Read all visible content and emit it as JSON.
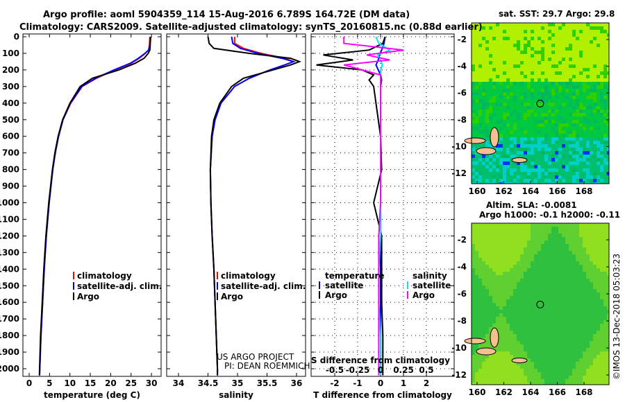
{
  "title_line1": "Argo profile: aoml 5904359_114 15-Aug-2016 6.789S 164.72E (DM data)",
  "title_line2": "Climatology: CARS2009. Satellite-adjusted climatology: synTS_20160815.nc (0.88d earlier)",
  "credit": [
    "US ARGO PROJECT",
    "PI: DEAN ROEMMICH"
  ],
  "timestamp": "©IMOS 13-Dec-2018 05:03:23",
  "colors": {
    "climatology": "#ff0000",
    "satellite": "#0000ff",
    "argo": "#000000",
    "sal_sat": "#00e5ee",
    "sal_argo": "#ff00ff"
  },
  "depth_ticks": [
    0,
    100,
    200,
    300,
    400,
    500,
    600,
    700,
    800,
    900,
    1000,
    1100,
    1200,
    1300,
    1400,
    1500,
    1600,
    1700,
    1800,
    1900,
    2000
  ],
  "chart_data": [
    {
      "type": "line",
      "name": "temperature",
      "xlabel": "temperature (deg C)",
      "xlim": [
        -1.5,
        32
      ],
      "ylim": [
        2045,
        0
      ],
      "xticks": [
        0,
        5,
        10,
        15,
        20,
        25,
        30
      ],
      "legend": [
        "climatology",
        "satellite-adj. clim.",
        "Argo"
      ],
      "depth": [
        0,
        50,
        80,
        100,
        130,
        160,
        200,
        250,
        300,
        400,
        500,
        600,
        700,
        800,
        1000,
        1200,
        1400,
        1600,
        1800,
        2000,
        2040
      ],
      "series": [
        {
          "name": "climatology",
          "key": "climatology",
          "values": [
            29.6,
            29.5,
            29.3,
            28.5,
            27,
            25,
            21,
            16.5,
            13,
            10.2,
            8.3,
            7.2,
            6.4,
            5.8,
            4.9,
            4.2,
            3.7,
            3.3,
            2.9,
            2.6,
            2.55
          ]
        },
        {
          "name": "satellite-adj. clim.",
          "key": "satellite",
          "values": [
            29.8,
            29.6,
            29.3,
            28.4,
            26.8,
            24.8,
            20.8,
            16.3,
            12.9,
            10.1,
            8.3,
            7.2,
            6.4,
            5.8,
            4.9,
            4.2,
            3.7,
            3.3,
            2.9,
            2.6,
            2.55
          ]
        },
        {
          "name": "Argo",
          "key": "argo",
          "values": [
            29.8,
            29.7,
            29.6,
            29.2,
            28.2,
            26,
            22,
            15.5,
            12.5,
            10,
            8.2,
            7.1,
            6.3,
            5.7,
            4.8,
            4.1,
            3.6,
            3.2,
            2.8,
            2.55,
            2.5
          ]
        }
      ]
    },
    {
      "type": "line",
      "name": "salinity",
      "xlabel": "salinity",
      "xlim": [
        33.8,
        36.2
      ],
      "ylim": [
        2045,
        0
      ],
      "xticks": [
        34,
        34.5,
        35,
        35.5,
        36
      ],
      "legend": [
        "climatology",
        "satellite-adj. clim.",
        "Argo"
      ],
      "depth": [
        0,
        40,
        70,
        100,
        130,
        150,
        170,
        200,
        250,
        300,
        400,
        500,
        600,
        800,
        1000,
        1200,
        1400,
        1600,
        1800,
        2000,
        2040
      ],
      "series": [
        {
          "name": "climatology",
          "key": "climatology",
          "values": [
            34.95,
            34.95,
            35.1,
            35.4,
            35.8,
            35.95,
            35.8,
            35.55,
            35.2,
            34.95,
            34.72,
            34.62,
            34.57,
            34.54,
            34.55,
            34.57,
            34.6,
            34.62,
            34.64,
            34.66,
            34.66
          ]
        },
        {
          "name": "satellite-adj. clim.",
          "key": "satellite",
          "values": [
            34.9,
            34.92,
            35.05,
            35.35,
            35.75,
            35.95,
            35.8,
            35.55,
            35.2,
            34.95,
            34.72,
            34.62,
            34.57,
            34.54,
            34.55,
            34.57,
            34.6,
            34.62,
            34.64,
            34.66,
            34.66
          ]
        },
        {
          "name": "Argo",
          "key": "argo",
          "values": [
            34.5,
            34.52,
            34.6,
            35.2,
            35.9,
            36.05,
            35.9,
            35.6,
            35.1,
            34.9,
            34.7,
            34.6,
            34.56,
            34.54,
            34.55,
            34.57,
            34.6,
            34.62,
            34.64,
            34.66,
            34.66
          ]
        }
      ]
    },
    {
      "type": "line",
      "name": "difference",
      "xlabel": "T difference from climatology",
      "s_label": "S difference from climatology",
      "xlim": [
        -3,
        3
      ],
      "xticks": [
        -2,
        -1,
        0,
        1,
        2
      ],
      "s_xticks": [
        -0.5,
        -0.25,
        0,
        0.25,
        0.5
      ],
      "ylim": [
        2045,
        0
      ],
      "legend_t": [
        "temperature",
        "satellite",
        "Argo"
      ],
      "legend_s": [
        "salinity",
        "satellite",
        "Argo"
      ],
      "depth": [
        0,
        40,
        80,
        110,
        140,
        170,
        200,
        230,
        260,
        300,
        400,
        500,
        600,
        800,
        1000,
        1200,
        1400,
        1600,
        1800,
        2000,
        2040
      ],
      "series": [
        {
          "name": "T satellite",
          "key": "satellite",
          "unit": "T",
          "values": [
            0.2,
            0.15,
            0.05,
            -0.05,
            -0.1,
            -0.2,
            -0.1,
            0,
            0.05,
            0,
            0,
            0,
            0,
            0,
            0,
            0,
            0,
            0,
            0,
            0,
            0
          ]
        },
        {
          "name": "T Argo",
          "key": "argo",
          "unit": "T",
          "values": [
            0.2,
            0.1,
            -0.5,
            -2.5,
            -1.2,
            -2.8,
            -0.8,
            -0.3,
            -0.5,
            -0.3,
            -0.2,
            -0.1,
            0,
            0.05,
            -0.3,
            0.05,
            0.05,
            0.05,
            0.1,
            0.1,
            0.1
          ]
        },
        {
          "name": "S satellite",
          "key": "sal_sat",
          "unit": "S",
          "values": [
            -0.05,
            -0.02,
            0.1,
            -0.03,
            0,
            0.02,
            0,
            0,
            0,
            0,
            0,
            0,
            0,
            0,
            0,
            0,
            -0.02,
            -0.02,
            0,
            0,
            0
          ]
        },
        {
          "name": "S Argo",
          "key": "sal_argo",
          "unit": "S",
          "values": [
            -0.4,
            -0.4,
            0.25,
            -0.15,
            0.1,
            -0.4,
            -0.2,
            0,
            0,
            0,
            0,
            0,
            0,
            0,
            0,
            -0.02,
            -0.02,
            -0.02,
            -0.02,
            -0.02,
            -0.02
          ]
        }
      ]
    }
  ],
  "maps": [
    {
      "title": "sat. SST: 29.7 Argo: 29.8",
      "xticks": [
        160,
        162,
        164,
        166,
        168
      ],
      "yticks": [
        -2,
        -4,
        -6,
        -8,
        -10,
        -12
      ],
      "lon": 164.72,
      "lat": -6.789
    },
    {
      "title": "Altim. SLA: -0.0081",
      "subtitle": "Argo h1000: -0.1 h2000: -0.11",
      "xticks": [
        160,
        162,
        164,
        166,
        168
      ],
      "yticks": [
        -2,
        -4,
        -6,
        -8,
        -10,
        -12
      ],
      "lon": 164.72,
      "lat": -6.789
    }
  ]
}
